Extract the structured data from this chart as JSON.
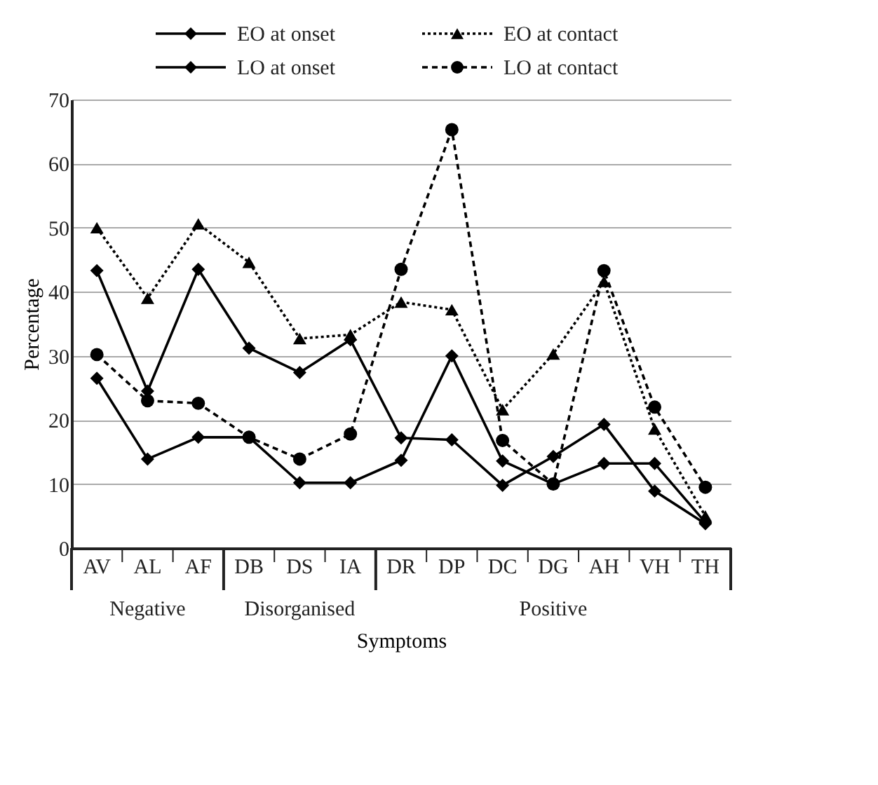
{
  "chart_data": {
    "type": "line",
    "xlabel": "Symptoms",
    "ylabel": "Percentage",
    "categories": [
      "AV",
      "AL",
      "AF",
      "DB",
      "DS",
      "IA",
      "DR",
      "DP",
      "DC",
      "DG",
      "AH",
      "VH",
      "TH"
    ],
    "ylim": [
      0,
      70
    ],
    "yticks": [
      0,
      10,
      20,
      30,
      40,
      50,
      60,
      70
    ],
    "grid": "y",
    "legend": "top",
    "series": [
      {
        "name": "EO at onset",
        "color": "#000000",
        "marker": "diamond",
        "line_style": "solid",
        "values": [
          43.3,
          24.5,
          43.5,
          31.2,
          27.4,
          32.5,
          17.2,
          16.9,
          9.8,
          14.3,
          19.3,
          8.9,
          3.8
        ]
      },
      {
        "name": "EO at contact",
        "color": "#000000",
        "marker": "triangle",
        "line_style": "dotted",
        "values": [
          50,
          39,
          50.6,
          44.6,
          32.7,
          33.3,
          38.4,
          37.2,
          21.6,
          30.3,
          41.6,
          18.6,
          5
        ]
      },
      {
        "name": "LO at onset",
        "color": "#000000",
        "marker": "diamond",
        "line_style": "solid",
        "values": [
          26.5,
          13.9,
          17.3,
          17.3,
          10.2,
          10.2,
          13.7,
          30,
          13.6,
          10,
          13.2,
          13.2,
          4
        ]
      },
      {
        "name": "LO at contact",
        "color": "#000000",
        "marker": "circle",
        "line_style": "dashed",
        "values": [
          30.2,
          23,
          22.6,
          17.3,
          13.9,
          17.8,
          43.5,
          65.3,
          16.8,
          10,
          43.3,
          22,
          9.5
        ]
      }
    ],
    "annotations": [
      "Negative",
      "Disorganised",
      "Positive"
    ]
  }
}
